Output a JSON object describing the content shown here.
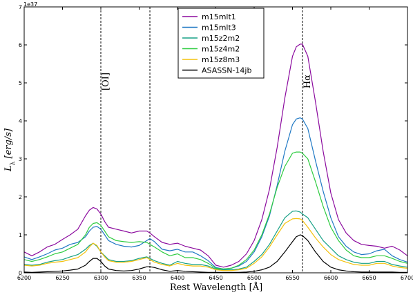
{
  "chart_data": {
    "type": "line",
    "title": "",
    "xlabel": "Rest Wavelength [Å]",
    "ylabel": "Lλ [erg/s]",
    "y_offset_label": "1e37",
    "xlim": [
      6200,
      6700
    ],
    "ylim": [
      0,
      7
    ],
    "xticks": [
      6200,
      6250,
      6300,
      6350,
      6400,
      6450,
      6500,
      6550,
      6600,
      6650,
      6700
    ],
    "yticks": [
      0,
      1,
      2,
      3,
      4,
      5,
      6,
      7
    ],
    "grid": false,
    "legend_position": "top-center",
    "vlines": [
      {
        "x": 6300,
        "label": "[OI]"
      },
      {
        "x": 6364,
        "label": ""
      },
      {
        "x": 6563,
        "label": "Hα"
      }
    ],
    "x": [
      6200,
      6210,
      6220,
      6230,
      6240,
      6250,
      6260,
      6270,
      6280,
      6285,
      6290,
      6295,
      6300,
      6305,
      6310,
      6320,
      6330,
      6340,
      6350,
      6360,
      6364,
      6370,
      6380,
      6390,
      6400,
      6410,
      6420,
      6430,
      6440,
      6450,
      6460,
      6470,
      6480,
      6490,
      6500,
      6510,
      6520,
      6530,
      6540,
      6550,
      6555,
      6560,
      6563,
      6570,
      6580,
      6590,
      6600,
      6610,
      6620,
      6630,
      6640,
      6650,
      6660,
      6670,
      6680,
      6690,
      6700
    ],
    "series": [
      {
        "name": "m15mlt1",
        "color": "#8b0a9e",
        "values": [
          0.55,
          0.45,
          0.55,
          0.68,
          0.75,
          0.88,
          1.0,
          1.15,
          1.5,
          1.65,
          1.72,
          1.68,
          1.55,
          1.35,
          1.2,
          1.15,
          1.1,
          1.05,
          1.1,
          1.1,
          1.05,
          0.95,
          0.8,
          0.75,
          0.78,
          0.7,
          0.65,
          0.6,
          0.45,
          0.2,
          0.15,
          0.2,
          0.3,
          0.5,
          0.85,
          1.4,
          2.2,
          3.3,
          4.6,
          5.7,
          5.95,
          6.02,
          6.02,
          5.7,
          4.5,
          3.2,
          2.1,
          1.4,
          1.05,
          0.85,
          0.75,
          0.72,
          0.7,
          0.65,
          0.7,
          0.6,
          0.45
        ]
      },
      {
        "name": "m15mlt3",
        "color": "#1f78c4",
        "values": [
          0.42,
          0.35,
          0.42,
          0.5,
          0.6,
          0.65,
          0.75,
          0.8,
          0.95,
          1.1,
          1.2,
          1.22,
          1.15,
          1.0,
          0.85,
          0.75,
          0.7,
          0.68,
          0.72,
          0.85,
          0.9,
          0.82,
          0.62,
          0.58,
          0.62,
          0.55,
          0.55,
          0.45,
          0.32,
          0.14,
          0.1,
          0.12,
          0.18,
          0.3,
          0.55,
          0.95,
          1.5,
          2.3,
          3.2,
          3.9,
          4.05,
          4.08,
          4.05,
          3.8,
          2.95,
          2.15,
          1.45,
          0.95,
          0.7,
          0.55,
          0.48,
          0.5,
          0.58,
          0.62,
          0.45,
          0.35,
          0.28
        ]
      },
      {
        "name": "m15z2m2",
        "color": "#16a085",
        "values": [
          0.22,
          0.2,
          0.22,
          0.28,
          0.32,
          0.35,
          0.42,
          0.48,
          0.62,
          0.72,
          0.78,
          0.7,
          0.55,
          0.45,
          0.35,
          0.3,
          0.3,
          0.32,
          0.38,
          0.42,
          0.38,
          0.32,
          0.25,
          0.2,
          0.3,
          0.25,
          0.22,
          0.22,
          0.18,
          0.1,
          0.08,
          0.08,
          0.1,
          0.15,
          0.3,
          0.48,
          0.75,
          1.1,
          1.45,
          1.62,
          1.63,
          1.6,
          1.55,
          1.45,
          1.15,
          0.85,
          0.65,
          0.45,
          0.35,
          0.28,
          0.25,
          0.25,
          0.3,
          0.3,
          0.22,
          0.18,
          0.15
        ]
      },
      {
        "name": "m15z4m2",
        "color": "#2ecc40",
        "values": [
          0.35,
          0.3,
          0.35,
          0.42,
          0.5,
          0.55,
          0.65,
          0.75,
          1.0,
          1.2,
          1.3,
          1.32,
          1.25,
          1.1,
          0.95,
          0.85,
          0.82,
          0.8,
          0.82,
          0.8,
          0.75,
          0.68,
          0.55,
          0.45,
          0.5,
          0.4,
          0.4,
          0.35,
          0.25,
          0.12,
          0.1,
          0.12,
          0.2,
          0.35,
          0.6,
          1.0,
          1.55,
          2.25,
          2.8,
          3.15,
          3.18,
          3.18,
          3.15,
          3.0,
          2.4,
          1.75,
          1.2,
          0.85,
          0.6,
          0.45,
          0.4,
          0.4,
          0.45,
          0.45,
          0.38,
          0.3,
          0.25
        ]
      },
      {
        "name": "m15z8m3",
        "color": "#f4c20d",
        "values": [
          0.2,
          0.18,
          0.2,
          0.25,
          0.28,
          0.3,
          0.35,
          0.4,
          0.55,
          0.68,
          0.78,
          0.72,
          0.55,
          0.42,
          0.32,
          0.28,
          0.28,
          0.3,
          0.35,
          0.4,
          0.35,
          0.28,
          0.22,
          0.18,
          0.25,
          0.2,
          0.18,
          0.18,
          0.15,
          0.08,
          0.06,
          0.06,
          0.08,
          0.12,
          0.25,
          0.42,
          0.68,
          1.0,
          1.3,
          1.42,
          1.43,
          1.42,
          1.38,
          1.2,
          0.92,
          0.68,
          0.48,
          0.35,
          0.28,
          0.22,
          0.2,
          0.2,
          0.25,
          0.25,
          0.18,
          0.14,
          0.12
        ]
      },
      {
        "name": "ASASSN-14jb",
        "color": "#000000",
        "values": [
          0.02,
          0.01,
          0.02,
          0.03,
          0.04,
          0.05,
          0.07,
          0.1,
          0.2,
          0.3,
          0.38,
          0.38,
          0.3,
          0.18,
          0.1,
          0.06,
          0.05,
          0.06,
          0.1,
          0.16,
          0.16,
          0.14,
          0.08,
          0.04,
          0.06,
          0.04,
          0.03,
          0.02,
          0.01,
          0.01,
          0.01,
          0.01,
          0.01,
          0.02,
          0.04,
          0.08,
          0.15,
          0.3,
          0.55,
          0.82,
          0.95,
          1.0,
          0.98,
          0.85,
          0.55,
          0.3,
          0.15,
          0.08,
          0.05,
          0.03,
          0.02,
          0.02,
          0.02,
          0.02,
          0.02,
          0.01,
          0.01
        ]
      }
    ]
  }
}
